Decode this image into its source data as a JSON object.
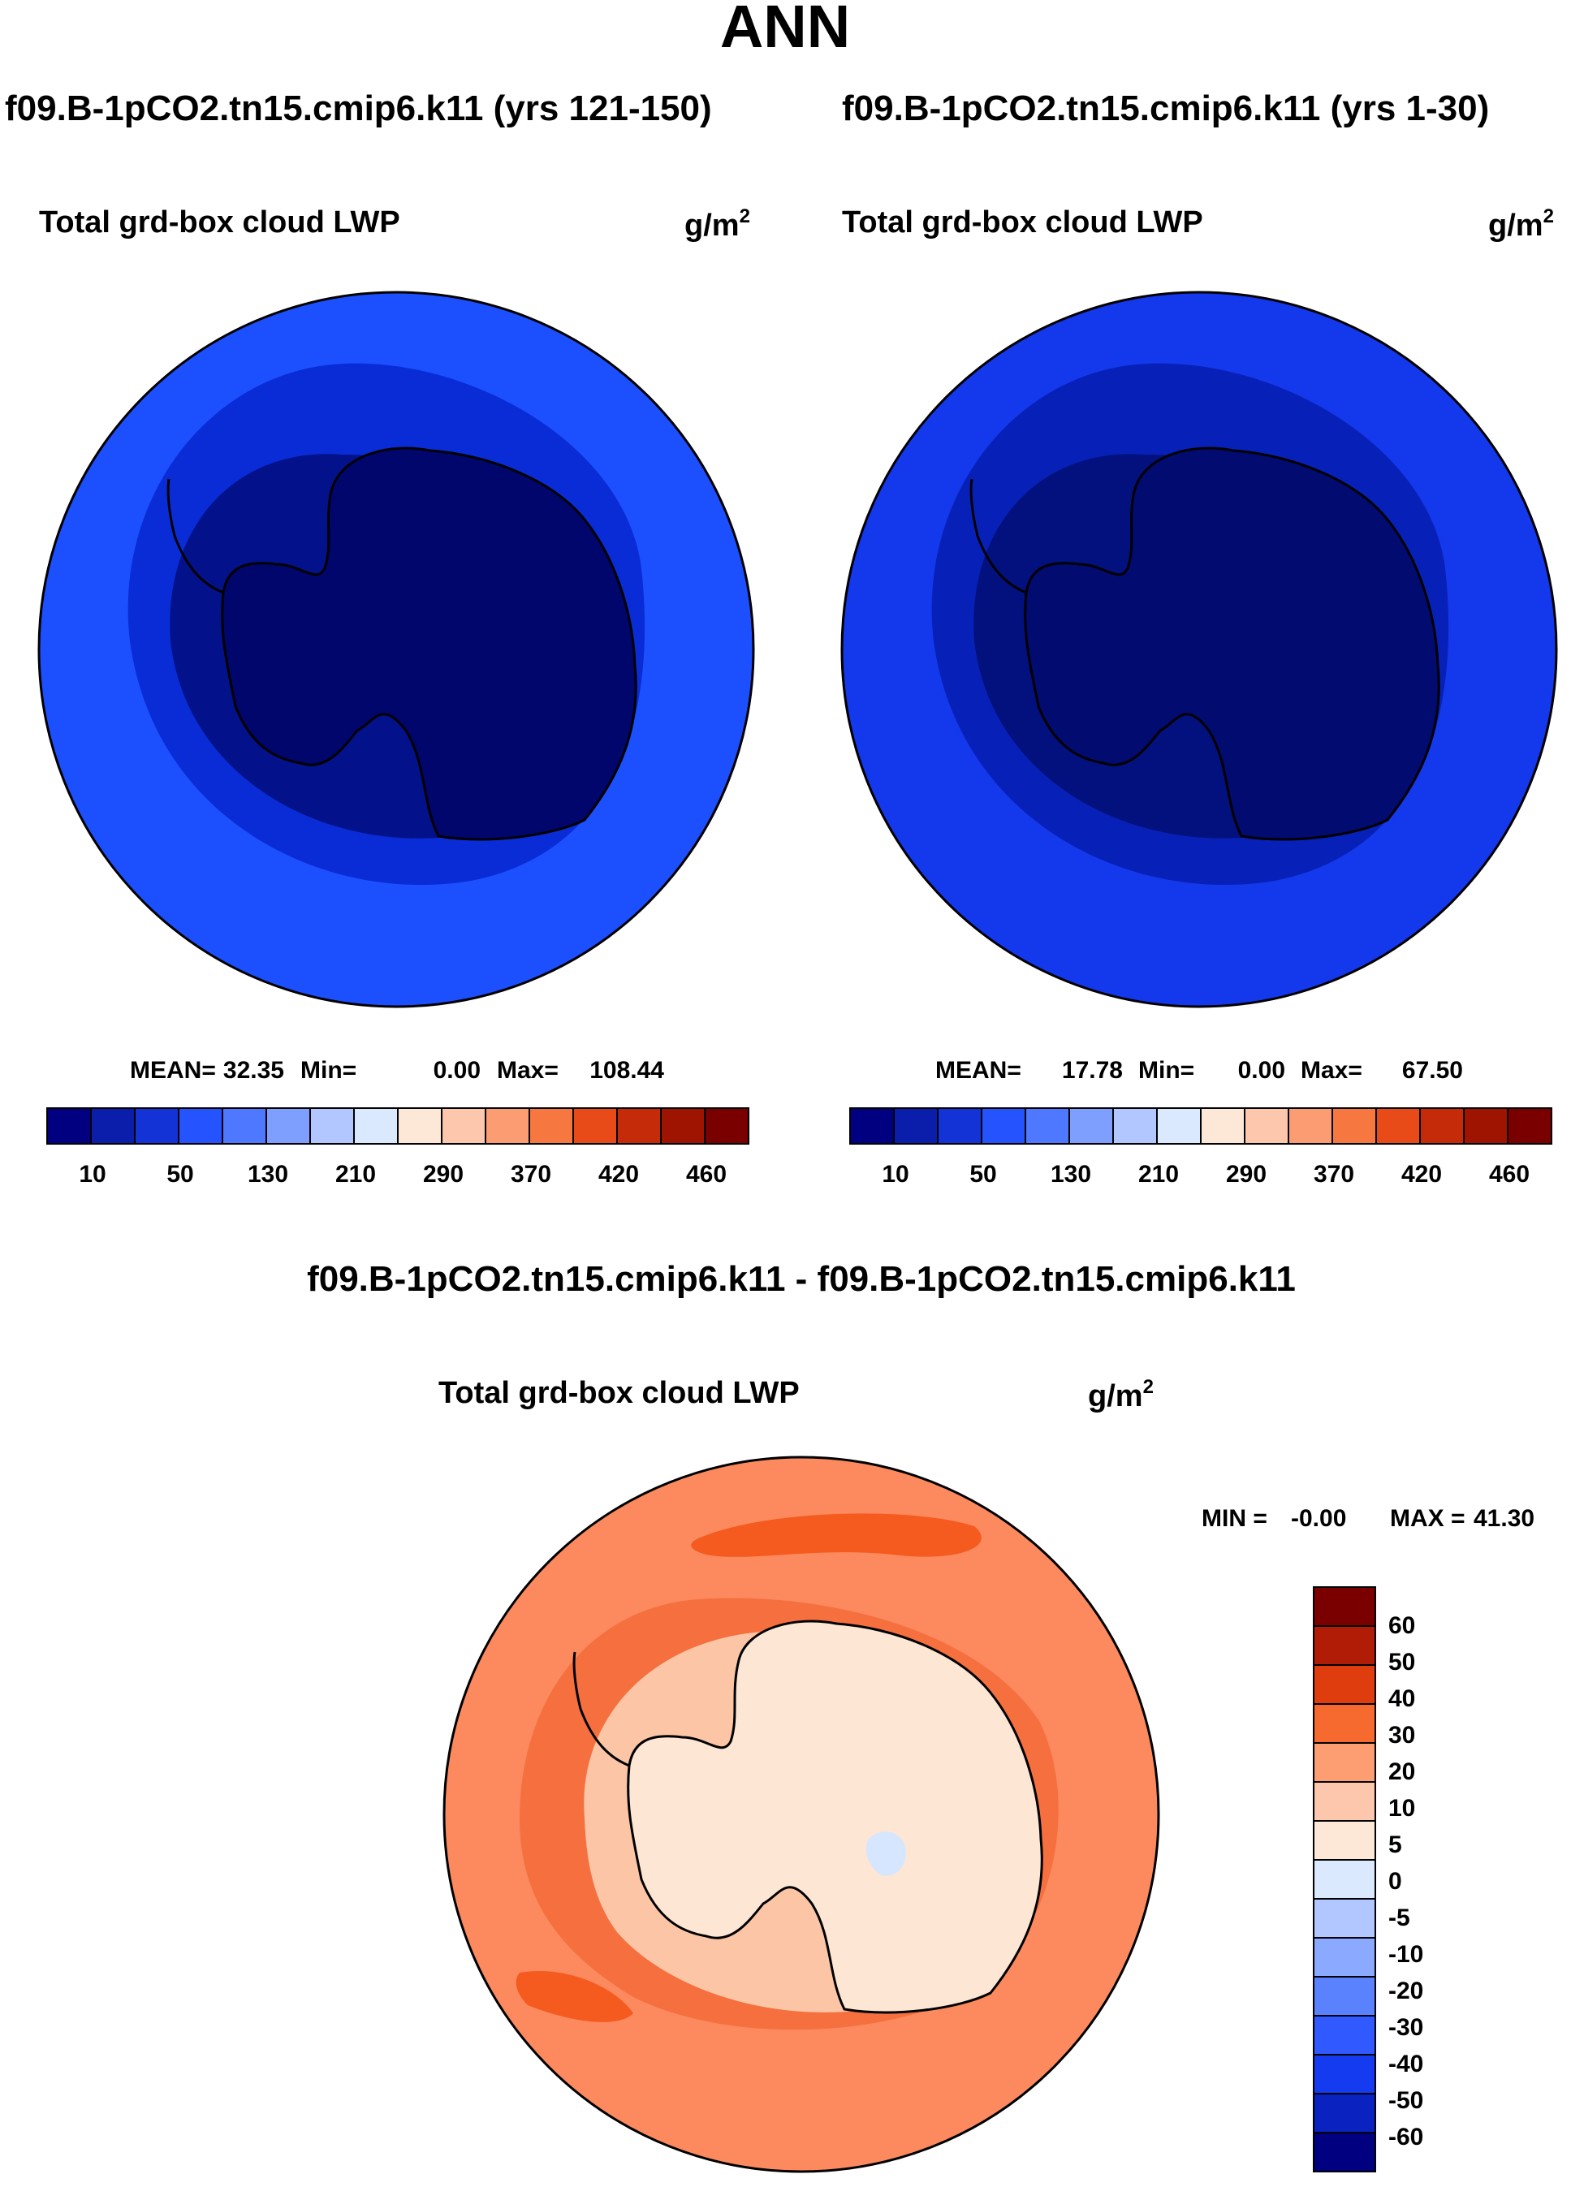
{
  "page": {
    "title": "ANN"
  },
  "panels": [
    {
      "case": "f09.B-1pCO2.tn15.cmip6.k11 (yrs 121-150)",
      "variable": "Total grd-box cloud LWP",
      "units_base": "g/m",
      "units_exp": "2",
      "stats": {
        "mean_label": "MEAN=",
        "mean": "32.35",
        "min_label": "Min=",
        "min": "0.00",
        "max_label": "Max=",
        "max": "108.44"
      },
      "colorbar_ticks": [
        "10",
        "50",
        "130",
        "210",
        "290",
        "370",
        "420",
        "460"
      ],
      "fill_colors": {
        "outer": "#1c50ff",
        "mid": "#0a2cd6",
        "inner": "#03128a",
        "core": "#01066c"
      }
    },
    {
      "case": "f09.B-1pCO2.tn15.cmip6.k11 (yrs 1-30)",
      "variable": "Total grd-box cloud LWP",
      "units_base": "g/m",
      "units_exp": "2",
      "stats": {
        "mean_label": "MEAN=",
        "mean": "17.78",
        "min_label": "Min=",
        "min": "0.00",
        "max_label": "Max=",
        "max": "67.50"
      },
      "colorbar_ticks": [
        "10",
        "50",
        "130",
        "210",
        "290",
        "370",
        "420",
        "460"
      ],
      "fill_colors": {
        "outer": "#1438ec",
        "mid": "#0721b8",
        "inner": "#03117e",
        "core": "#020b70"
      }
    },
    {
      "case": "f09.B-1pCO2.tn15.cmip6.k11 - f09.B-1pCO2.tn15.cmip6.k11",
      "variable": "Total grd-box cloud LWP",
      "units_base": "g/m",
      "units_exp": "2",
      "stats": {
        "min_label": "MIN =",
        "min": "-0.00",
        "max_label": "MAX =",
        "max": "41.30"
      },
      "colorbar_ticks": [
        "60",
        "50",
        "40",
        "30",
        "20",
        "10",
        "5",
        "0",
        "-5",
        "-10",
        "-20",
        "-30",
        "-40",
        "-50",
        "-60"
      ],
      "fill_colors": {
        "outer": "#fc8a5e",
        "mid": "#f5703e",
        "band": "#f55a1f",
        "inner": "#fcc6a6",
        "core": "#fde6d4"
      }
    }
  ],
  "colorbar_colors": [
    "#000080",
    "#0a1eab",
    "#1433d6",
    "#2554ff",
    "#4d78ff",
    "#7f9fff",
    "#b2c7ff",
    "#dbe9ff",
    "#fde8d8",
    "#fcc7ac",
    "#fc9c73",
    "#f6773f",
    "#e84a18",
    "#c52b08",
    "#9e1400",
    "#7a0000"
  ],
  "diff_colorbar_colors": [
    "#7a0000",
    "#b01c05",
    "#e03d0e",
    "#f66a30",
    "#fc9d72",
    "#fcc7ac",
    "#fde8d8",
    "#dbe9ff",
    "#b2c7ff",
    "#8aa9ff",
    "#5a82ff",
    "#3059ff",
    "#143bf0",
    "#0a22c0",
    "#000080"
  ]
}
